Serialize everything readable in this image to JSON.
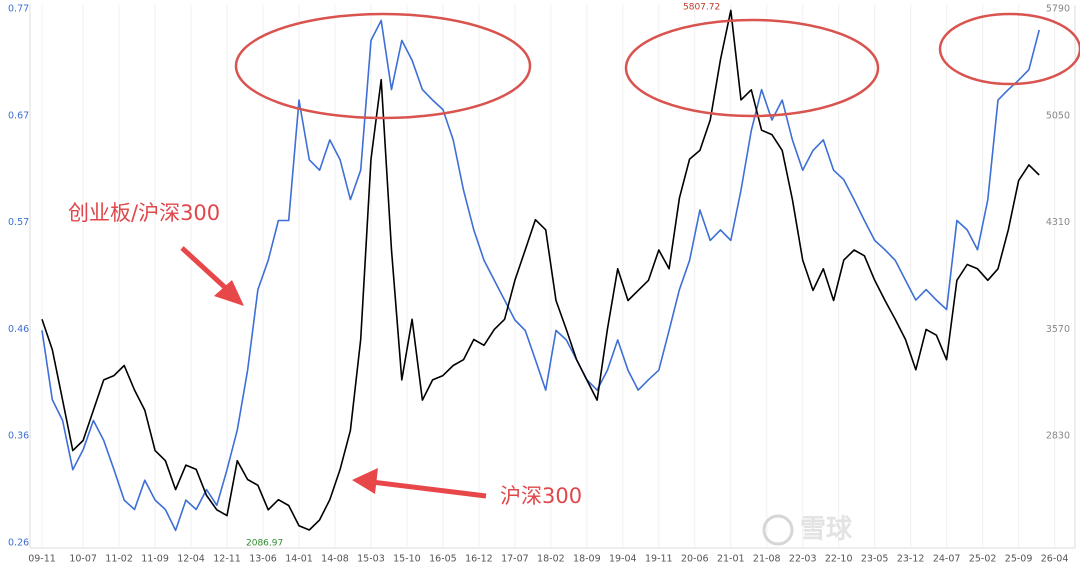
{
  "chart_data": {
    "type": "line",
    "x": [
      "09-11",
      "10-01",
      "10-03",
      "10-05",
      "10-07",
      "10-09",
      "10-11",
      "11-01",
      "11-03",
      "11-05",
      "11-07",
      "11-09",
      "11-11",
      "12-01",
      "12-03",
      "12-05",
      "12-07",
      "12-09",
      "12-11",
      "13-01",
      "13-03",
      "13-05",
      "13-07",
      "13-09",
      "13-11",
      "14-01",
      "14-03",
      "14-05",
      "14-07",
      "14-09",
      "14-11",
      "15-01",
      "15-03",
      "15-05",
      "15-07",
      "15-09",
      "15-11",
      "16-01",
      "16-03",
      "16-05",
      "16-07",
      "16-09",
      "16-11",
      "17-01",
      "17-03",
      "17-05",
      "17-07",
      "17-09",
      "17-11",
      "18-01",
      "18-03",
      "18-05",
      "18-07",
      "18-09",
      "18-11",
      "19-01",
      "19-03",
      "19-05",
      "19-07",
      "19-09",
      "19-11",
      "20-01",
      "20-03",
      "20-05",
      "20-07",
      "20-09",
      "20-11",
      "21-01",
      "21-03",
      "21-05",
      "21-07",
      "21-09",
      "21-11",
      "22-01",
      "22-03",
      "22-05",
      "22-07",
      "22-09",
      "22-11",
      "23-01",
      "23-03",
      "23-05",
      "23-07",
      "23-09",
      "23-11",
      "24-01",
      "24-03",
      "24-05",
      "24-07",
      "24-09",
      "24-11",
      "25-01",
      "25-03",
      "25-05",
      "25-07",
      "25-09",
      "25-11",
      "26-01"
    ],
    "xticks": [
      "09-11",
      "10-07",
      "11-02",
      "11-09",
      "12-04",
      "12-11",
      "13-06",
      "14-01",
      "14-08",
      "15-03",
      "15-10",
      "16-05",
      "16-12",
      "17-07",
      "18-02",
      "18-09",
      "19-04",
      "19-11",
      "20-06",
      "21-01",
      "21-08",
      "22-03",
      "22-10",
      "23-05",
      "23-12",
      "24-07",
      "25-02",
      "25-09",
      "26-04"
    ],
    "series": [
      {
        "name": "创业板/沪深300",
        "color": "#3d6fd6",
        "axis": "y",
        "values": [
          0.463,
          0.397,
          0.377,
          0.33,
          0.349,
          0.377,
          0.358,
          0.33,
          0.301,
          0.292,
          0.32,
          0.301,
          0.292,
          0.272,
          0.301,
          0.292,
          0.311,
          0.296,
          0.33,
          0.368,
          0.425,
          0.502,
          0.53,
          0.568,
          0.568,
          0.683,
          0.626,
          0.616,
          0.645,
          0.626,
          0.588,
          0.616,
          0.74,
          0.759,
          0.693,
          0.74,
          0.721,
          0.693,
          0.683,
          0.674,
          0.645,
          0.597,
          0.559,
          0.53,
          0.511,
          0.492,
          0.473,
          0.463,
          0.435,
          0.406,
          0.463,
          0.454,
          0.435,
          0.416,
          0.406,
          0.425,
          0.454,
          0.425,
          0.406,
          0.416,
          0.425,
          0.463,
          0.502,
          0.53,
          0.578,
          0.549,
          0.559,
          0.549,
          0.597,
          0.654,
          0.693,
          0.664,
          0.683,
          0.645,
          0.616,
          0.635,
          0.645,
          0.616,
          0.607,
          0.588,
          0.568,
          0.549,
          0.54,
          0.53,
          0.511,
          0.492,
          0.502,
          0.492,
          0.483,
          0.568,
          0.559,
          0.54,
          0.588,
          0.683,
          0.693,
          0.702,
          0.712,
          0.75
        ]
      },
      {
        "name": "沪深300",
        "color": "#000000",
        "axis": "y2",
        "values": [
          3640,
          3430,
          3080,
          2730,
          2800,
          3010,
          3220,
          3250,
          3320,
          3150,
          3010,
          2730,
          2660,
          2460,
          2630,
          2600,
          2420,
          2320,
          2280,
          2660,
          2530,
          2490,
          2320,
          2390,
          2350,
          2210,
          2180,
          2250,
          2390,
          2600,
          2870,
          3500,
          4750,
          5300,
          4120,
          3220,
          3640,
          3080,
          3220,
          3250,
          3320,
          3360,
          3500,
          3460,
          3570,
          3640,
          3910,
          4120,
          4330,
          4260,
          3770,
          3570,
          3360,
          3220,
          3080,
          3570,
          3990,
          3770,
          3840,
          3910,
          4120,
          3990,
          4480,
          4750,
          4810,
          5020,
          5440,
          5780,
          5160,
          5230,
          4950,
          4920,
          4810,
          4470,
          4050,
          3840,
          3990,
          3770,
          4050,
          4120,
          4080,
          3910,
          3770,
          3640,
          3500,
          3290,
          3570,
          3530,
          3360,
          3910,
          4020,
          3990,
          3910,
          3990,
          4260,
          4600,
          4710,
          4640
        ]
      }
    ],
    "ylim": [
      0.26,
      0.77
    ],
    "yticks": [
      0.26,
      {
        "value": 0.362,
        "label": "0.36"
      },
      {
        "value": 0.464,
        "label": "0.46"
      },
      {
        "value": 0.566,
        "label": "0.57"
      },
      {
        "value": 0.668,
        "label": "0.67"
      },
      0.77
    ],
    "y2lim": [
      2090,
      5790
    ],
    "y2ticks": [
      2830,
      3570,
      4310,
      5050,
      5790
    ],
    "peak_label": "5807.72",
    "low_label": "2086.97",
    "annotations": [
      "创业板/沪深300",
      "沪深300"
    ],
    "watermark": "雪球",
    "grid": true
  }
}
